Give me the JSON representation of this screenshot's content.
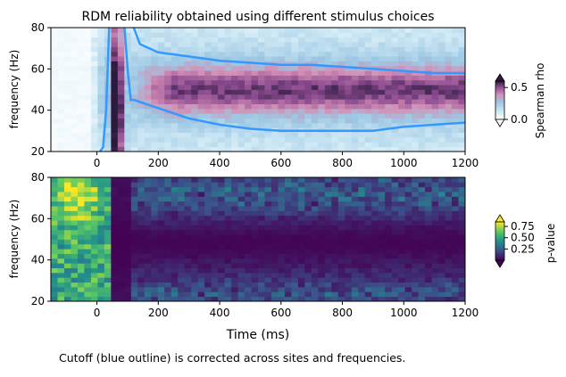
{
  "figure": {
    "title": "RDM reliability obtained using different stimulus choices",
    "footnote": "Cutoff (blue outline) is corrected across sites and frequencies.",
    "xlabel": "Time (ms)"
  },
  "chart_data": [
    {
      "type": "heatmap",
      "title": "RDM reliability obtained using different stimulus choices",
      "xlabel": "",
      "ylabel": "frequency (Hz)",
      "xlim": [
        -150,
        1200
      ],
      "ylim": [
        20,
        80
      ],
      "xticks": [
        0,
        200,
        400,
        600,
        800,
        1000,
        1200
      ],
      "yticks": [
        20,
        40,
        60,
        80
      ],
      "colorbar": {
        "label": "Spearman rho",
        "ticks": [
          0.0,
          0.5
        ],
        "range": [
          0.0,
          0.6
        ],
        "colormap": "cubehelix-like white to blue to pink",
        "extend": "both"
      },
      "features": [
        {
          "time_ms": [
            30,
            100
          ],
          "freq_hz": [
            20,
            80
          ],
          "value": 0.6,
          "description": "strong transient after stimulus onset"
        },
        {
          "time_ms": [
            100,
            1200
          ],
          "freq_hz": [
            38,
            65
          ],
          "value": 0.35,
          "description": "sustained band"
        }
      ],
      "cutoff_outline_color": "#3399ff",
      "cutoff_upper_edge": [
        [
          120,
          80
        ],
        [
          140,
          72
        ],
        [
          200,
          68
        ],
        [
          300,
          66
        ],
        [
          400,
          64
        ],
        [
          500,
          63
        ],
        [
          600,
          62
        ],
        [
          700,
          62
        ],
        [
          800,
          61
        ],
        [
          900,
          60
        ],
        [
          1000,
          59
        ],
        [
          1100,
          58
        ],
        [
          1200,
          58
        ]
      ],
      "cutoff_lower_edge": [
        [
          120,
          45
        ],
        [
          200,
          41
        ],
        [
          300,
          36
        ],
        [
          400,
          33
        ],
        [
          500,
          31
        ],
        [
          600,
          30
        ],
        [
          700,
          30
        ],
        [
          800,
          30
        ],
        [
          900,
          30
        ],
        [
          1000,
          32
        ],
        [
          1100,
          33
        ],
        [
          1200,
          34
        ]
      ]
    },
    {
      "type": "heatmap",
      "title": "",
      "xlabel": "Time (ms)",
      "ylabel": "frequency (Hz)",
      "xlim": [
        -150,
        1200
      ],
      "ylim": [
        20,
        80
      ],
      "xticks": [
        0,
        200,
        400,
        600,
        800,
        1000,
        1200
      ],
      "yticks": [
        20,
        40,
        60,
        80
      ],
      "colorbar": {
        "label": "p-value",
        "ticks": [
          0.25,
          0.5,
          0.75
        ],
        "range": [
          0.0,
          0.85
        ],
        "colormap": "viridis",
        "extend": "both"
      },
      "features": [
        {
          "time_ms": [
            -150,
            30
          ],
          "freq_hz": [
            20,
            80
          ],
          "value": 0.55,
          "description": "pre-stimulus high p-values"
        },
        {
          "time_ms": [
            -120,
            -20
          ],
          "freq_hz": [
            65,
            80
          ],
          "value": 0.85,
          "description": "yellow patch"
        },
        {
          "time_ms": [
            50,
            1200
          ],
          "freq_hz": [
            35,
            62
          ],
          "value": 0.02,
          "description": "significant band"
        }
      ]
    }
  ],
  "colors": {
    "outline": "#3399ff",
    "background": "#ffffff"
  }
}
